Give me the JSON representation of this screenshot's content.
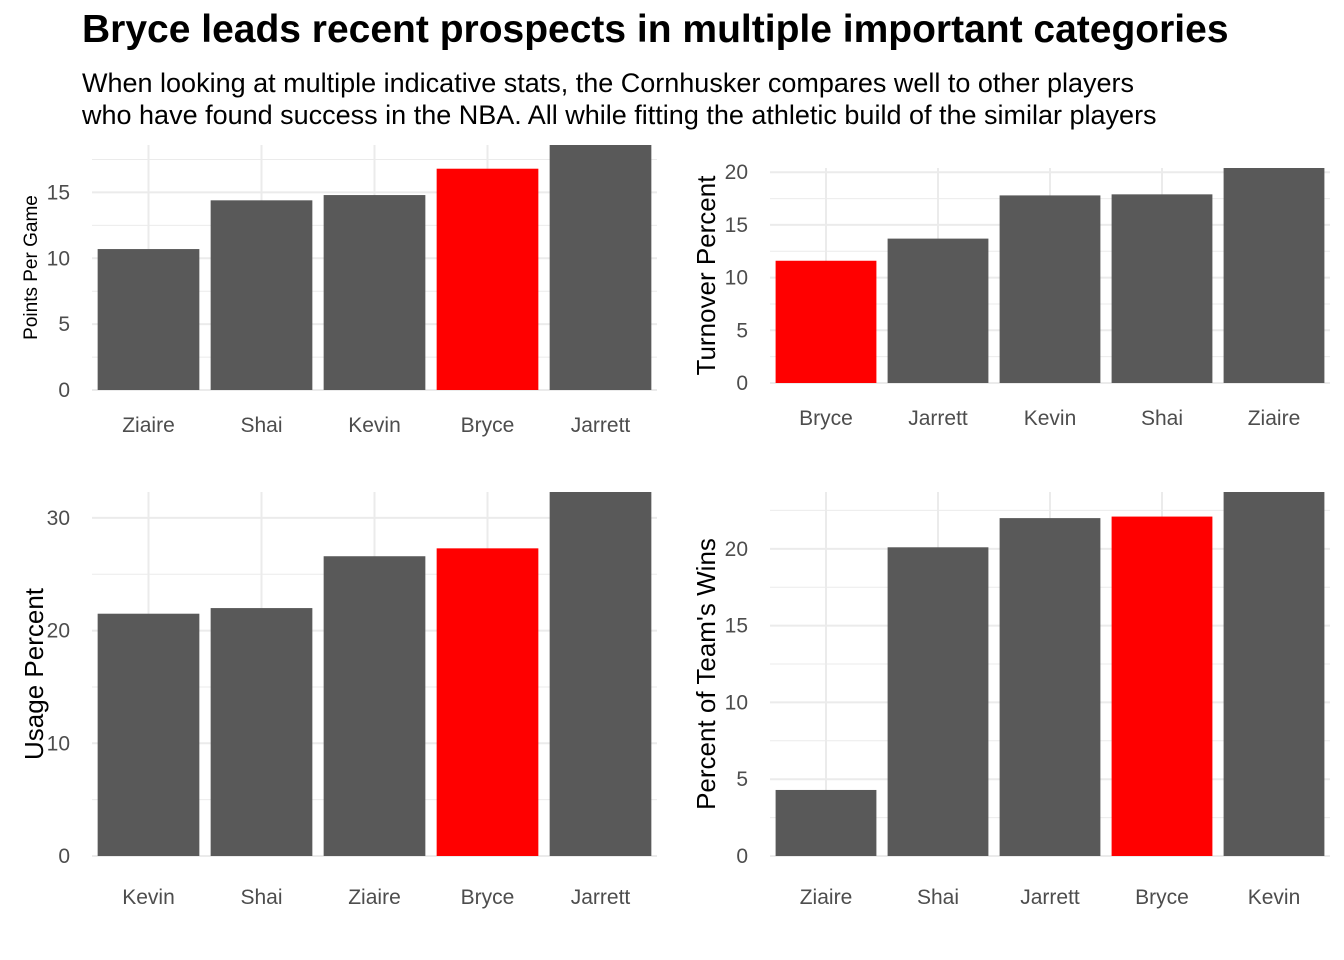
{
  "title": "Bryce leads recent prospects in multiple important categories",
  "subtitle": [
    "When looking at multiple indicative stats, the Cornhusker compares well to other players",
    "who have found success in the NBA. All while fitting the athletic build of the similar players"
  ],
  "colors": {
    "bar": "#595959",
    "highlight": "#ff0000",
    "grid": "#ebebeb"
  },
  "highlight_category": "Bryce",
  "chart_data": [
    {
      "type": "bar",
      "title": "",
      "xlabel": "",
      "ylabel": "Points Per Game",
      "categories": [
        "Ziaire",
        "Shai",
        "Kevin",
        "Bryce",
        "Jarrett"
      ],
      "values": [
        10.7,
        14.4,
        14.8,
        16.8,
        18.6
      ],
      "ylim": [
        0,
        18.6
      ],
      "yticks": [
        0,
        5,
        10,
        15
      ],
      "grid": true
    },
    {
      "type": "bar",
      "title": "",
      "xlabel": "",
      "ylabel": "Turnover Percent",
      "categories": [
        "Bryce",
        "Jarrett",
        "Kevin",
        "Shai",
        "Ziaire"
      ],
      "values": [
        11.6,
        13.7,
        17.8,
        17.9,
        20.4
      ],
      "ylim": [
        0,
        20.4
      ],
      "yticks": [
        0,
        5,
        10,
        15,
        20
      ],
      "grid": true
    },
    {
      "type": "bar",
      "title": "",
      "xlabel": "",
      "ylabel": "Usage Percent",
      "categories": [
        "Kevin",
        "Shai",
        "Ziaire",
        "Bryce",
        "Jarrett"
      ],
      "values": [
        21.5,
        22.0,
        26.6,
        27.3,
        32.3
      ],
      "ylim": [
        0,
        32.3
      ],
      "yticks": [
        0,
        10,
        20,
        30
      ],
      "grid": true
    },
    {
      "type": "bar",
      "title": "",
      "xlabel": "",
      "ylabel": "Percent of Team's Wins",
      "categories": [
        "Ziaire",
        "Shai",
        "Jarrett",
        "Bryce",
        "Kevin"
      ],
      "values": [
        4.3,
        20.1,
        22.0,
        22.1,
        23.7
      ],
      "ylim": [
        0,
        23.7
      ],
      "yticks": [
        0,
        5,
        10,
        15,
        20
      ],
      "grid": true
    }
  ]
}
